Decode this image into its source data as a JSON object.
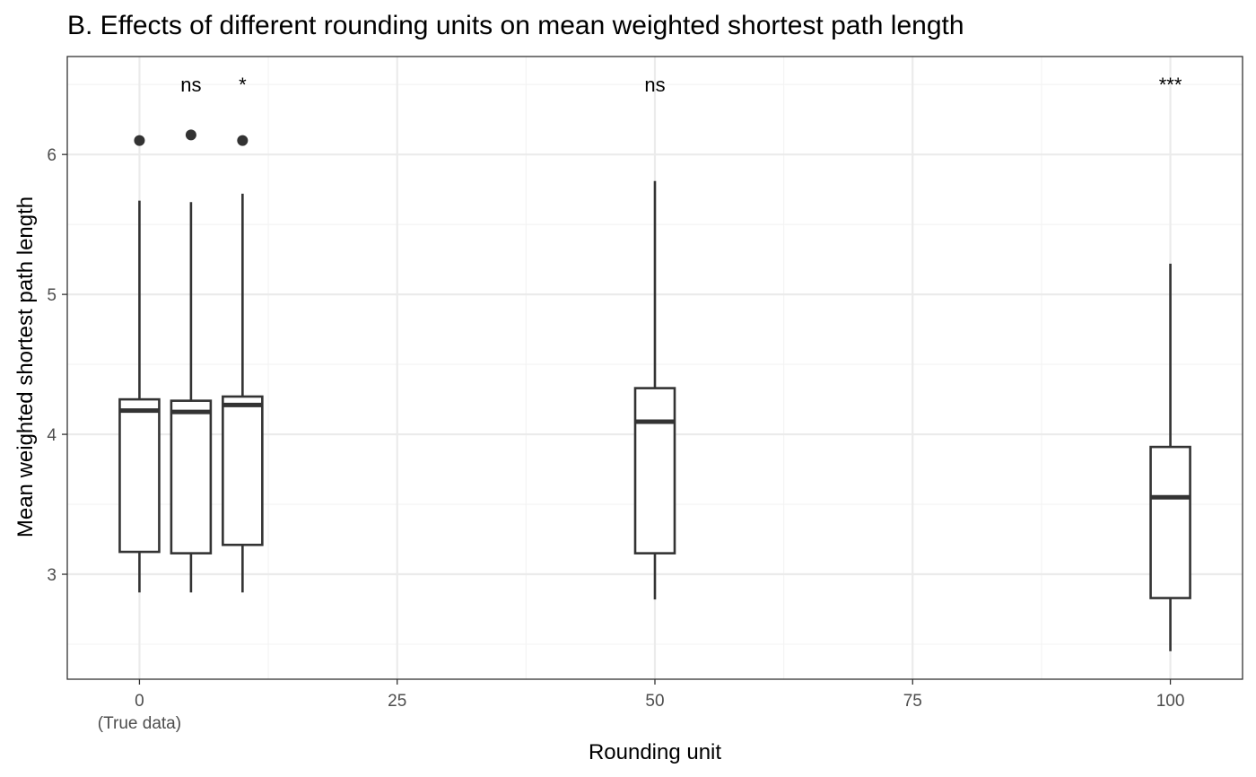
{
  "chart_data": {
    "type": "box",
    "title": "B. Effects of different rounding units on mean weighted shortest path length",
    "xlabel": "Rounding unit",
    "ylabel": "Mean weighted shortest path length",
    "xlim": [
      -7,
      107
    ],
    "ylim": [
      2.25,
      6.7
    ],
    "x_ticks": [
      0,
      25,
      50,
      75,
      100
    ],
    "x_tick_labels": [
      "0",
      "25",
      "50",
      "75",
      "100"
    ],
    "x_tick_sublabel": "(True data)",
    "y_ticks": [
      3,
      4,
      5,
      6
    ],
    "y_tick_labels": [
      "3",
      "4",
      "5",
      "6"
    ],
    "grid": true,
    "boxes": [
      {
        "x": 0,
        "lower_whisker": 2.87,
        "q1": 3.16,
        "median": 4.17,
        "q3": 4.25,
        "upper_whisker": 5.67,
        "outliers": [
          6.1
        ],
        "annotation": ""
      },
      {
        "x": 5,
        "lower_whisker": 2.87,
        "q1": 3.15,
        "median": 4.16,
        "q3": 4.24,
        "upper_whisker": 5.66,
        "outliers": [
          6.14
        ],
        "annotation": "ns"
      },
      {
        "x": 10,
        "lower_whisker": 2.87,
        "q1": 3.21,
        "median": 4.21,
        "q3": 4.27,
        "upper_whisker": 5.72,
        "outliers": [
          6.1
        ],
        "annotation": "*"
      },
      {
        "x": 50,
        "lower_whisker": 2.82,
        "q1": 3.15,
        "median": 4.09,
        "q3": 4.33,
        "upper_whisker": 5.81,
        "outliers": [],
        "annotation": "ns"
      },
      {
        "x": 100,
        "lower_whisker": 2.45,
        "q1": 2.83,
        "median": 3.55,
        "q3": 3.91,
        "upper_whisker": 5.22,
        "outliers": [],
        "annotation": "***"
      }
    ],
    "annotation_y": 6.5,
    "colors": {
      "box": "#333333",
      "grid_major": "#ebebeb",
      "grid_minor": "#f3f3f3",
      "panel_border": "#333333",
      "background": "#ffffff"
    }
  }
}
